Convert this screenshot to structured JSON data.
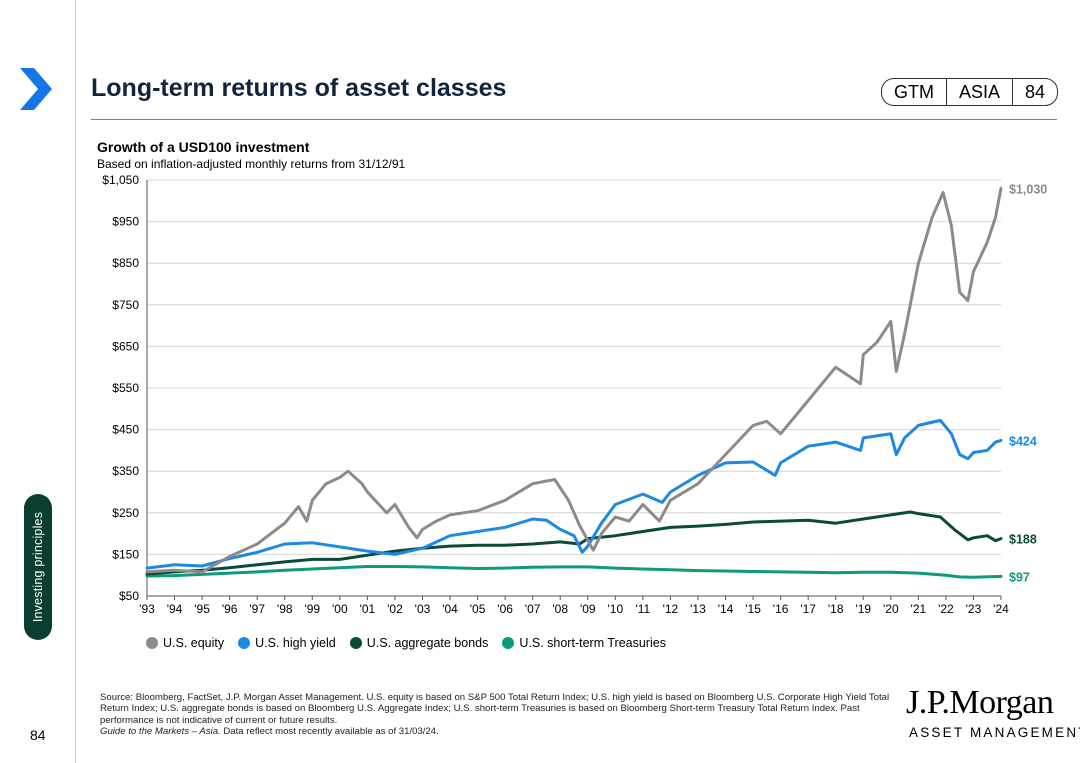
{
  "header": {
    "title": "Long-term returns of asset classes",
    "badge": [
      "GTM",
      "ASIA",
      "84"
    ]
  },
  "sidebar": {
    "section_label": "Investing principles"
  },
  "chart_title": "Growth of a USD100 investment",
  "chart_subtitle": "Based on inflation-adjusted monthly returns from 31/12/91",
  "chart_data": {
    "type": "line",
    "title": "Growth of a USD100 investment",
    "subtitle": "Based on inflation-adjusted monthly returns from 31/12/91",
    "xlim": [
      1993,
      2024
    ],
    "ylim": [
      50,
      1050
    ],
    "ytick_labels": [
      "$50",
      "$150",
      "$250",
      "$350",
      "$450",
      "$550",
      "$650",
      "$750",
      "$850",
      "$950",
      "$1,050"
    ],
    "ytick_values": [
      50,
      150,
      250,
      350,
      450,
      550,
      650,
      750,
      850,
      950,
      1050
    ],
    "xtick_labels": [
      "'93",
      "'94",
      "'95",
      "'96",
      "'97",
      "'98",
      "'99",
      "'00",
      "'01",
      "'02",
      "'03",
      "'04",
      "'05",
      "'06",
      "'07",
      "'08",
      "'09",
      "'10",
      "'11",
      "'12",
      "'13",
      "'14",
      "'15",
      "'16",
      "'17",
      "'18",
      "'19",
      "'20",
      "'21",
      "'22",
      "'23",
      "'24"
    ],
    "grid": true,
    "legend_position": "bottom",
    "series": [
      {
        "name": "U.S. equity",
        "color": "#8e8a8a",
        "end_label": "$1,030",
        "points": [
          [
            1993,
            108
          ],
          [
            1994,
            112
          ],
          [
            1995,
            108
          ],
          [
            1996,
            145
          ],
          [
            1997,
            175
          ],
          [
            1998,
            225
          ],
          [
            1998.5,
            265
          ],
          [
            1998.8,
            230
          ],
          [
            1999,
            280
          ],
          [
            1999.5,
            320
          ],
          [
            2000,
            335
          ],
          [
            2000.3,
            350
          ],
          [
            2000.8,
            320
          ],
          [
            2001,
            300
          ],
          [
            2001.7,
            250
          ],
          [
            2002,
            270
          ],
          [
            2002.5,
            215
          ],
          [
            2002.8,
            190
          ],
          [
            2003,
            210
          ],
          [
            2003.5,
            230
          ],
          [
            2004,
            245
          ],
          [
            2005,
            255
          ],
          [
            2006,
            280
          ],
          [
            2007,
            320
          ],
          [
            2007.8,
            330
          ],
          [
            2008.3,
            280
          ],
          [
            2008.7,
            220
          ],
          [
            2009.2,
            160
          ],
          [
            2009.5,
            200
          ],
          [
            2010,
            240
          ],
          [
            2010.5,
            230
          ],
          [
            2011,
            270
          ],
          [
            2011.6,
            230
          ],
          [
            2012,
            280
          ],
          [
            2013,
            320
          ],
          [
            2014,
            390
          ],
          [
            2015,
            460
          ],
          [
            2015.5,
            470
          ],
          [
            2016,
            440
          ],
          [
            2017,
            520
          ],
          [
            2018,
            600
          ],
          [
            2018.9,
            560
          ],
          [
            2019,
            630
          ],
          [
            2019.5,
            660
          ],
          [
            2020,
            710
          ],
          [
            2020.2,
            590
          ],
          [
            2020.5,
            680
          ],
          [
            2021,
            850
          ],
          [
            2021.5,
            960
          ],
          [
            2021.9,
            1020
          ],
          [
            2022.2,
            940
          ],
          [
            2022.5,
            780
          ],
          [
            2022.8,
            760
          ],
          [
            2023,
            830
          ],
          [
            2023.5,
            900
          ],
          [
            2023.8,
            960
          ],
          [
            2024,
            1030
          ]
        ]
      },
      {
        "name": "U.S. high yield",
        "color": "#1e88e5",
        "end_label": "$424",
        "points": [
          [
            1993,
            117
          ],
          [
            1994,
            125
          ],
          [
            1995,
            122
          ],
          [
            1996,
            140
          ],
          [
            1997,
            155
          ],
          [
            1998,
            175
          ],
          [
            1999,
            178
          ],
          [
            2000,
            168
          ],
          [
            2001,
            158
          ],
          [
            2002,
            150
          ],
          [
            2003,
            165
          ],
          [
            2004,
            195
          ],
          [
            2005,
            205
          ],
          [
            2006,
            215
          ],
          [
            2007,
            235
          ],
          [
            2007.5,
            232
          ],
          [
            2008,
            210
          ],
          [
            2008.5,
            195
          ],
          [
            2008.8,
            155
          ],
          [
            2009,
            170
          ],
          [
            2009.5,
            225
          ],
          [
            2010,
            270
          ],
          [
            2011,
            295
          ],
          [
            2011.7,
            275
          ],
          [
            2012,
            300
          ],
          [
            2013,
            340
          ],
          [
            2014,
            370
          ],
          [
            2015,
            372
          ],
          [
            2015.8,
            340
          ],
          [
            2016,
            370
          ],
          [
            2017,
            410
          ],
          [
            2018,
            420
          ],
          [
            2018.9,
            400
          ],
          [
            2019,
            430
          ],
          [
            2020,
            440
          ],
          [
            2020.2,
            390
          ],
          [
            2020.5,
            430
          ],
          [
            2021,
            460
          ],
          [
            2021.8,
            472
          ],
          [
            2022.2,
            440
          ],
          [
            2022.5,
            390
          ],
          [
            2022.8,
            380
          ],
          [
            2023,
            395
          ],
          [
            2023.5,
            400
          ],
          [
            2023.8,
            420
          ],
          [
            2024,
            424
          ]
        ]
      },
      {
        "name": "U.S. aggregate bonds",
        "color": "#0b4a3a",
        "end_label": "$188",
        "points": [
          [
            1993,
            103
          ],
          [
            1994,
            108
          ],
          [
            1995,
            112
          ],
          [
            1996,
            118
          ],
          [
            1997,
            125
          ],
          [
            1998,
            132
          ],
          [
            1999,
            138
          ],
          [
            2000,
            138
          ],
          [
            2001,
            148
          ],
          [
            2002,
            158
          ],
          [
            2003,
            165
          ],
          [
            2004,
            170
          ],
          [
            2005,
            172
          ],
          [
            2006,
            172
          ],
          [
            2007,
            175
          ],
          [
            2008,
            180
          ],
          [
            2008.7,
            175
          ],
          [
            2009,
            188
          ],
          [
            2010,
            195
          ],
          [
            2011,
            205
          ],
          [
            2012,
            215
          ],
          [
            2013,
            218
          ],
          [
            2014,
            222
          ],
          [
            2015,
            228
          ],
          [
            2016,
            230
          ],
          [
            2017,
            232
          ],
          [
            2018,
            225
          ],
          [
            2019,
            235
          ],
          [
            2020,
            245
          ],
          [
            2020.7,
            252
          ],
          [
            2021,
            248
          ],
          [
            2021.8,
            240
          ],
          [
            2022.3,
            210
          ],
          [
            2022.8,
            185
          ],
          [
            2023,
            190
          ],
          [
            2023.5,
            195
          ],
          [
            2023.8,
            183
          ],
          [
            2024,
            188
          ]
        ]
      },
      {
        "name": "U.S. short-term Treasuries",
        "color": "#0f9a7c",
        "end_label": "$97",
        "points": [
          [
            1993,
            98
          ],
          [
            1994,
            99
          ],
          [
            1995,
            102
          ],
          [
            1996,
            105
          ],
          [
            1997,
            108
          ],
          [
            1998,
            112
          ],
          [
            1999,
            115
          ],
          [
            2000,
            118
          ],
          [
            2001,
            121
          ],
          [
            2002,
            121
          ],
          [
            2003,
            120
          ],
          [
            2004,
            118
          ],
          [
            2005,
            116
          ],
          [
            2006,
            117
          ],
          [
            2007,
            119
          ],
          [
            2008,
            120
          ],
          [
            2009,
            120
          ],
          [
            2010,
            117
          ],
          [
            2011,
            115
          ],
          [
            2012,
            113
          ],
          [
            2013,
            111
          ],
          [
            2014,
            110
          ],
          [
            2015,
            109
          ],
          [
            2016,
            108
          ],
          [
            2017,
            107
          ],
          [
            2018,
            106
          ],
          [
            2019,
            107
          ],
          [
            2020,
            107
          ],
          [
            2021,
            105
          ],
          [
            2022,
            100
          ],
          [
            2022.5,
            96
          ],
          [
            2023,
            95
          ],
          [
            2024,
            97
          ]
        ]
      }
    ]
  },
  "source": {
    "text": "Source: Bloomberg, FactSet, J.P. Morgan Asset Management. U.S. equity is based on S&P 500 Total Return Index; U.S. high yield is based on Bloomberg U.S. Corporate High Yield Total Return Index; U.S. aggregate bonds is based on Bloomberg U.S. Aggregate Index; U.S. short-term Treasuries is based on Bloomberg Short-term Treasury Total Return Index. Past performance is not indicative of current or future results.",
    "guide": "Guide to the Markets – Asia.",
    "data_note": " Data reflect most recently available as of 31/03/24."
  },
  "footer": {
    "logo_main": "J.P.Morgan",
    "logo_sub": "ASSET MANAGEMENT",
    "page_number": "84"
  }
}
